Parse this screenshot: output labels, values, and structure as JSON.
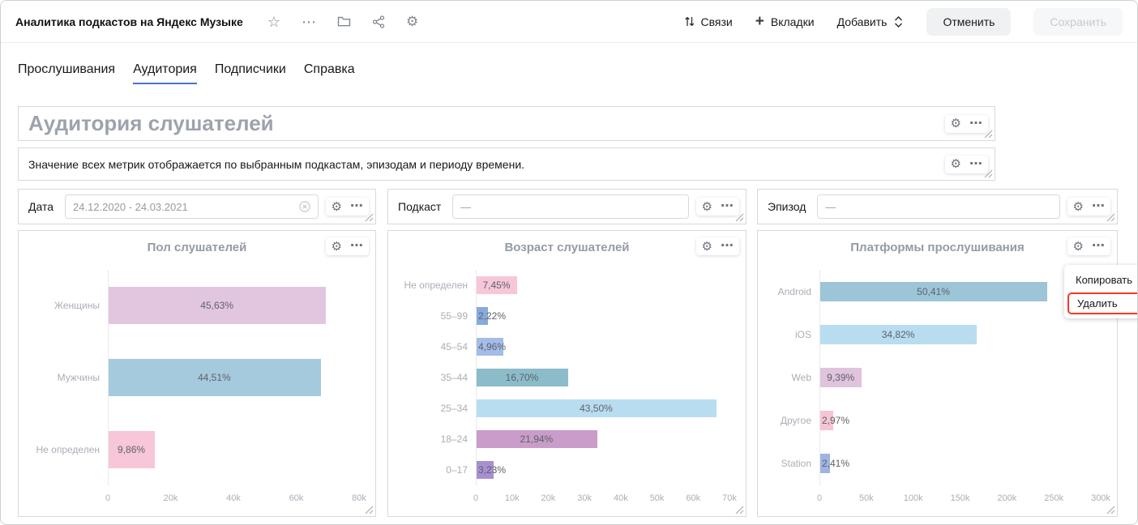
{
  "header": {
    "title": "Аналитика подкастов на Яндекс Музыке",
    "links_label": "Связи",
    "tabs_label": "Вкладки",
    "add_label": "Добавить",
    "cancel_label": "Отменить",
    "save_label": "Сохранить"
  },
  "icons": {
    "star": "☆",
    "more": "⋯",
    "gear": "⚙",
    "plus": "+",
    "widget_menu": "⋯"
  },
  "tabs": [
    {
      "label": "Прослушивания"
    },
    {
      "label": "Аудитория"
    },
    {
      "label": "Подписчики"
    },
    {
      "label": "Справка"
    }
  ],
  "active_tab": "Аудитория",
  "title_widget": {
    "text": "Аудитория слушателей"
  },
  "text_widget": {
    "text": "Значение всех метрик отображается по выбранным подкастам, эпизодам и периоду времени."
  },
  "selectors": [
    {
      "label": "Дата",
      "value": "24.12.2020 - 24.03.2021"
    },
    {
      "label": "Подкаст",
      "value": "—"
    },
    {
      "label": "Эпизод",
      "value": "—"
    }
  ],
  "context_menu": {
    "items": [
      {
        "label": "Копировать",
        "highlighted": false
      },
      {
        "label": "Удалить",
        "highlighted": true
      }
    ],
    "highlight_color": "#f23a20"
  },
  "chart_data": [
    {
      "type": "bar",
      "orientation": "horizontal",
      "title": "Пол слушателей",
      "categories": [
        "Женщины",
        "Мужчины",
        "Не определен"
      ],
      "values": [
        69500,
        67800,
        15000
      ],
      "labels": [
        "45,63%",
        "44,51%",
        "9,86%"
      ],
      "colors": [
        "#e2c6e0",
        "#a6cadd",
        "#f7c6d9"
      ],
      "x_ticks": [
        "0",
        "20k",
        "40k",
        "60k",
        "80k"
      ],
      "xlim": [
        0,
        80000
      ],
      "grid": false,
      "legend": false
    },
    {
      "type": "bar",
      "orientation": "horizontal",
      "title": "Возраст слушателей",
      "categories": [
        "Не определен",
        "55–99",
        "45–54",
        "35–44",
        "25–34",
        "18–24",
        "0–17"
      ],
      "values": [
        11400,
        3400,
        7600,
        25500,
        66400,
        33500,
        4900
      ],
      "labels": [
        "7,45%",
        "2,22%",
        "4,96%",
        "16,70%",
        "43,50%",
        "21,94%",
        "3,23%"
      ],
      "colors": [
        "#f7c6d9",
        "#86abdc",
        "#a3bce8",
        "#8cbcca",
        "#b9ddf0",
        "#c99cc9",
        "#a98fd0"
      ],
      "x_ticks": [
        "0",
        "10k",
        "20k",
        "30k",
        "40k",
        "50k",
        "60k",
        "70k"
      ],
      "xlim": [
        0,
        70000
      ],
      "grid": false,
      "legend": false
    },
    {
      "type": "bar",
      "orientation": "horizontal",
      "title": "Платформы прослушивания",
      "categories": [
        "Android",
        "iOS",
        "Web",
        "Другое",
        "Station"
      ],
      "values": [
        243000,
        167900,
        45300,
        14300,
        11600
      ],
      "labels": [
        "50,41%",
        "34,82%",
        "9,39%",
        "2,97%",
        "2,41%"
      ],
      "colors": [
        "#9cc5d8",
        "#b9ddf0",
        "#e0c3dc",
        "#f6c4d4",
        "#9db4e4"
      ],
      "x_ticks": [
        "0",
        "50k",
        "100k",
        "150k",
        "200k",
        "250k",
        "300k"
      ],
      "xlim": [
        0,
        300000
      ],
      "grid": false,
      "legend": false
    }
  ]
}
